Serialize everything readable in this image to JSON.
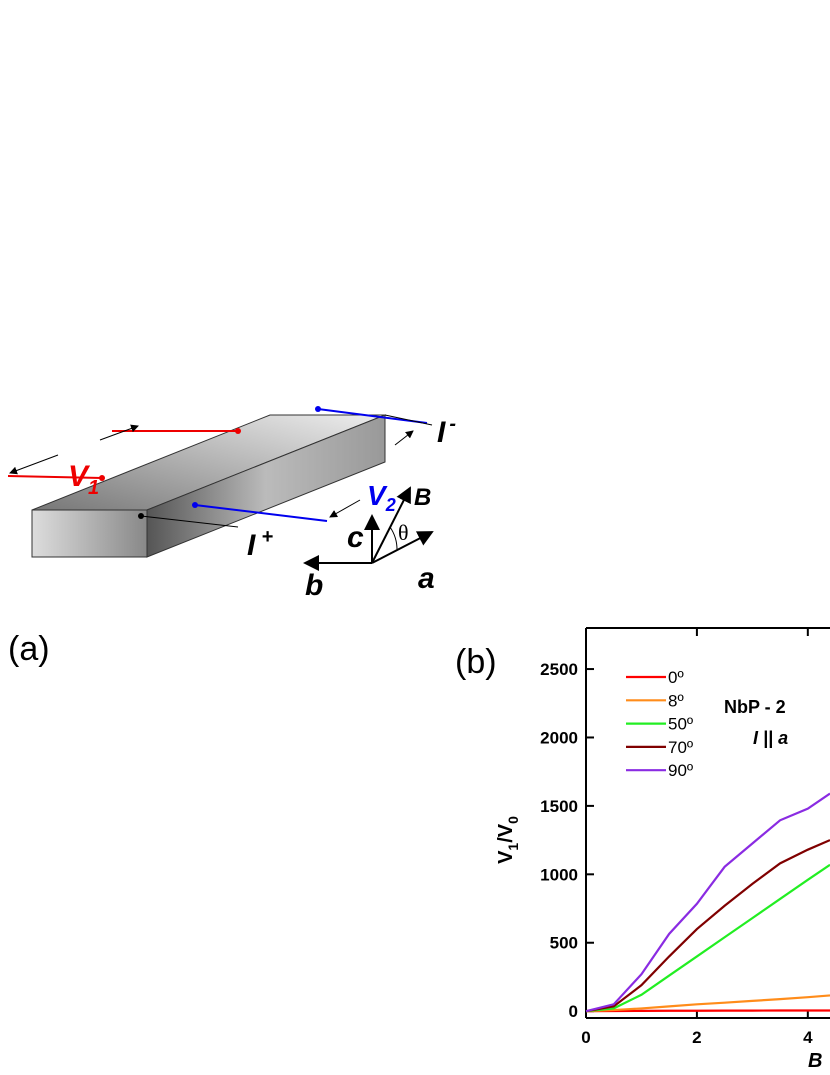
{
  "panel_a": {
    "panel_label": "(a)",
    "v1": [
      "V",
      "1"
    ],
    "v2": [
      "V",
      "2"
    ],
    "i_minus": [
      "I",
      "-"
    ],
    "i_plus": [
      "I",
      "+"
    ],
    "axis_c": "c",
    "axis_b": "b",
    "axis_a": "a",
    "axis_B": "B",
    "angle": "θ"
  },
  "chart_data": {
    "type": "line",
    "panel_label": "(b)",
    "annotation": [
      "NbP - 2",
      "I || a"
    ],
    "ylabel_parts": [
      "V",
      "1",
      "/V",
      "0"
    ],
    "xlabel": "B",
    "x": [
      0,
      0.5,
      1,
      1.5,
      2,
      2.5,
      3,
      3.5,
      4,
      4.4
    ],
    "xlim": [
      0,
      4.4
    ],
    "xticks": [
      0,
      2,
      4
    ],
    "ylim": [
      -50,
      2800
    ],
    "yticks": [
      0,
      500,
      1000,
      1500,
      2000,
      2500
    ],
    "legend": "upper left",
    "series": [
      {
        "name": "0º",
        "color": "#ff0000",
        "values": [
          0,
          1,
          2,
          3,
          3,
          4,
          4,
          5,
          5,
          5
        ]
      },
      {
        "name": "8º",
        "color": "#ff8c1a",
        "values": [
          0,
          8,
          20,
          35,
          50,
          62,
          75,
          88,
          102,
          115
        ]
      },
      {
        "name": "50º",
        "color": "#22ee22",
        "values": [
          0,
          20,
          120,
          260,
          400,
          540,
          680,
          820,
          960,
          1070
        ]
      },
      {
        "name": "70º",
        "color": "#800000",
        "values": [
          0,
          35,
          190,
          400,
          600,
          770,
          930,
          1080,
          1180,
          1250
        ]
      },
      {
        "name": "90º",
        "color": "#8a2be2",
        "values": [
          0,
          50,
          270,
          565,
          785,
          1055,
          1225,
          1395,
          1480,
          1590
        ]
      }
    ]
  }
}
